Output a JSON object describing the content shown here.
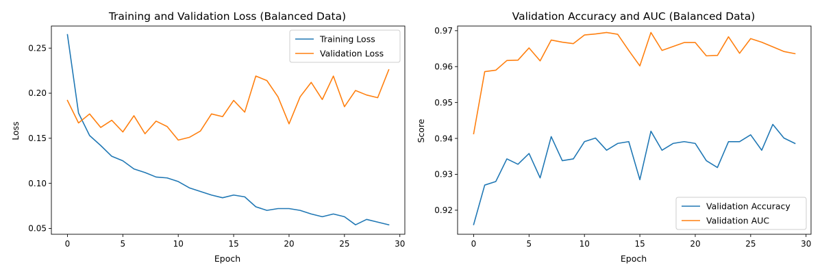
{
  "colors": {
    "blue": "#1f77b4",
    "orange": "#ff7f0e"
  },
  "chart_data": [
    {
      "type": "line",
      "title": "Training and Validation Loss (Balanced Data)",
      "xlabel": "Epoch",
      "ylabel": "Loss",
      "xlim": [
        -1.45,
        30.45
      ],
      "ylim": [
        0.0435,
        0.2745
      ],
      "xticks": [
        0,
        5,
        10,
        15,
        20,
        25,
        30
      ],
      "yticks": [
        0.05,
        0.1,
        0.15,
        0.2,
        0.25
      ],
      "ytick_labels": [
        "0.05",
        "0.10",
        "0.15",
        "0.20",
        "0.25"
      ],
      "grid": false,
      "legend_position": "top-right",
      "x": [
        0,
        1,
        2,
        3,
        4,
        5,
        6,
        7,
        8,
        9,
        10,
        11,
        12,
        13,
        14,
        15,
        16,
        17,
        18,
        19,
        20,
        21,
        22,
        23,
        24,
        25,
        26,
        27,
        28,
        29
      ],
      "series": [
        {
          "name": "Training Loss",
          "color": "#1f77b4",
          "values": [
            0.265,
            0.178,
            0.153,
            0.142,
            0.13,
            0.125,
            0.116,
            0.112,
            0.107,
            0.106,
            0.102,
            0.095,
            0.091,
            0.087,
            0.084,
            0.087,
            0.085,
            0.074,
            0.07,
            0.072,
            0.072,
            0.07,
            0.066,
            0.063,
            0.066,
            0.063,
            0.054,
            0.06,
            0.057,
            0.054
          ]
        },
        {
          "name": "Validation Loss",
          "color": "#ff7f0e",
          "values": [
            0.192,
            0.167,
            0.177,
            0.162,
            0.17,
            0.157,
            0.175,
            0.155,
            0.169,
            0.163,
            0.148,
            0.151,
            0.158,
            0.177,
            0.174,
            0.192,
            0.179,
            0.219,
            0.214,
            0.196,
            0.166,
            0.196,
            0.212,
            0.193,
            0.219,
            0.185,
            0.203,
            0.198,
            0.195,
            0.226
          ]
        }
      ]
    },
    {
      "type": "line",
      "title": "Validation Accuracy and AUC (Balanced Data)",
      "xlabel": "Epoch",
      "ylabel": "Score",
      "xlim": [
        -1.45,
        30.45
      ],
      "ylim": [
        0.9133,
        0.9713
      ],
      "xticks": [
        0,
        5,
        10,
        15,
        20,
        25,
        30
      ],
      "yticks": [
        0.92,
        0.93,
        0.94,
        0.95,
        0.96,
        0.97
      ],
      "ytick_labels": [
        "0.92",
        "0.93",
        "0.94",
        "0.95",
        "0.96",
        "0.97"
      ],
      "grid": false,
      "legend_position": "bottom-right",
      "x": [
        0,
        1,
        2,
        3,
        4,
        5,
        6,
        7,
        8,
        9,
        10,
        11,
        12,
        13,
        14,
        15,
        16,
        17,
        18,
        19,
        20,
        21,
        22,
        23,
        24,
        25,
        26,
        27,
        28,
        29
      ],
      "series": [
        {
          "name": "Validation Accuracy",
          "color": "#1f77b4",
          "values": [
            0.916,
            0.927,
            0.928,
            0.9343,
            0.9328,
            0.9358,
            0.929,
            0.9405,
            0.9338,
            0.9343,
            0.9391,
            0.9401,
            0.9367,
            0.9386,
            0.9391,
            0.9285,
            0.942,
            0.9367,
            0.9386,
            0.9391,
            0.9386,
            0.9338,
            0.9319,
            0.9391,
            0.9391,
            0.941,
            0.9367,
            0.9439,
            0.9401,
            0.9386
          ]
        },
        {
          "name": "Validation AUC",
          "color": "#ff7f0e",
          "values": [
            0.9413,
            0.9586,
            0.959,
            0.9617,
            0.9618,
            0.9652,
            0.9616,
            0.9674,
            0.9668,
            0.9664,
            0.9688,
            0.9691,
            0.9695,
            0.969,
            0.9645,
            0.9602,
            0.9695,
            0.9645,
            0.9656,
            0.9667,
            0.9667,
            0.963,
            0.9631,
            0.9683,
            0.9637,
            0.9678,
            0.9668,
            0.9655,
            0.9642,
            0.9636
          ]
        }
      ]
    }
  ]
}
